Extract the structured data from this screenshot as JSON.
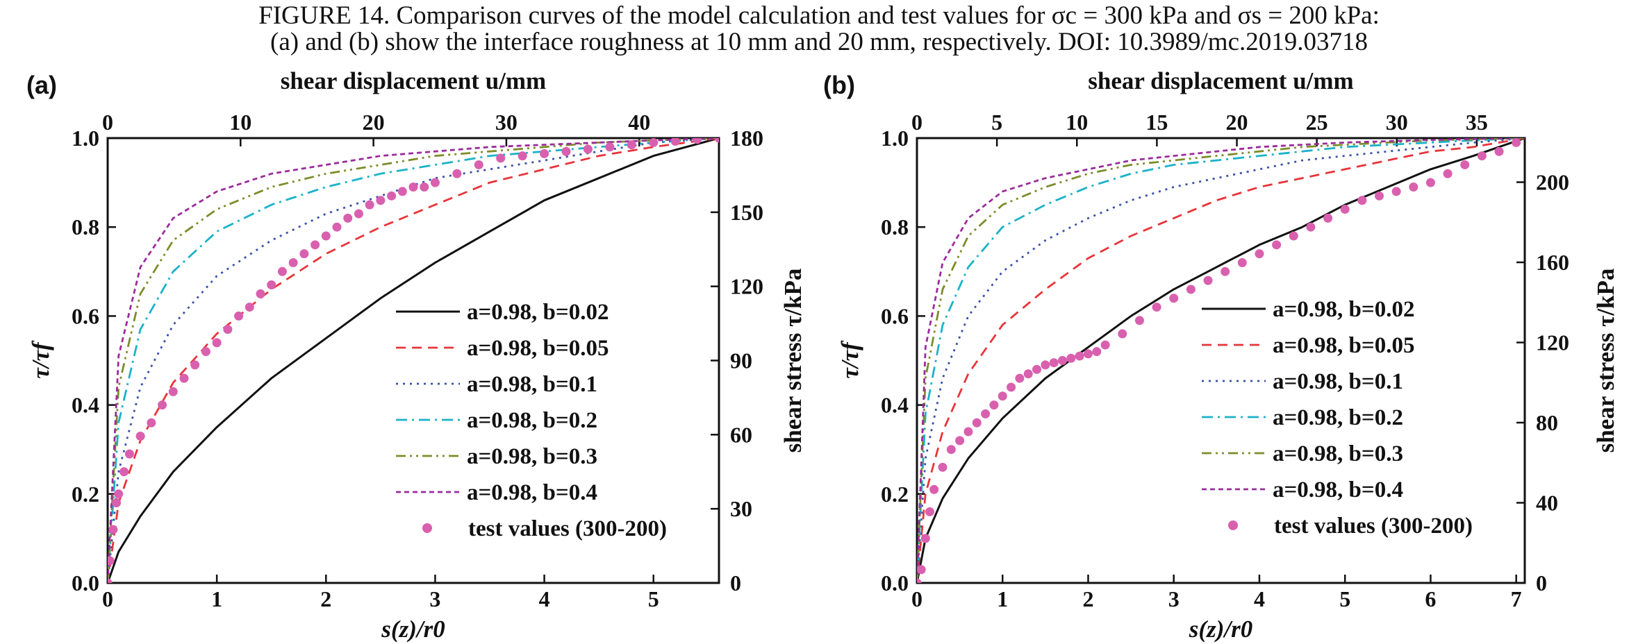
{
  "caption": {
    "line1": "FIGURE 14.    Comparison curves of the model calculation and test values for σc = 300 kPa and σs = 200 kPa:",
    "line2": "(a) and (b) show the interface roughness at 10 mm and 20 mm, respectively.  DOI: 10.3989/mc.2019.03718"
  },
  "colors": {
    "b002": "#111111",
    "b005": "#e8343a",
    "b01": "#3a4fa8",
    "b02": "#1ab2c9",
    "b03": "#7d8c2a",
    "b04": "#9b2c9b",
    "test": "#d960ae"
  },
  "chart_data": [
    {
      "type": "line",
      "label": "(a)",
      "xlabel": "s(z)/r0",
      "ylabel": "τ/τf",
      "x2label": "shear displacement u/mm",
      "y2label": "shear stress τ/kPa",
      "xlim": [
        0,
        5.6
      ],
      "ylim": [
        0,
        1.0
      ],
      "x2lim": [
        0,
        46
      ],
      "y2lim": [
        0,
        180
      ],
      "xticks": [
        0,
        1,
        2,
        3,
        4,
        5
      ],
      "yticks": [
        0.0,
        0.2,
        0.4,
        0.6,
        0.8,
        1.0
      ],
      "x2ticks": [
        0,
        10,
        20,
        30,
        40
      ],
      "y2ticks": [
        0,
        30,
        60,
        90,
        120,
        150,
        180
      ],
      "legend_position": "lower-right",
      "series": [
        {
          "name": "a=0.98, b=0.02",
          "style": "solid",
          "color_key": "b002",
          "x": [
            0,
            0.1,
            0.3,
            0.6,
            1.0,
            1.5,
            2.0,
            2.5,
            3.0,
            3.5,
            4.0,
            4.5,
            5.0,
            5.6
          ],
          "y": [
            0,
            0.07,
            0.15,
            0.25,
            0.35,
            0.46,
            0.55,
            0.64,
            0.72,
            0.79,
            0.86,
            0.91,
            0.96,
            1.0
          ]
        },
        {
          "name": "a=0.98, b=0.05",
          "style": "dash",
          "color_key": "b005",
          "x": [
            0,
            0.1,
            0.3,
            0.6,
            1.0,
            1.5,
            2.0,
            2.5,
            3.0,
            3.5,
            4.0,
            4.5,
            5.0,
            5.6
          ],
          "y": [
            0,
            0.18,
            0.32,
            0.45,
            0.56,
            0.66,
            0.74,
            0.8,
            0.85,
            0.9,
            0.93,
            0.96,
            0.98,
            1.0
          ]
        },
        {
          "name": "a=0.98, b=0.1",
          "style": "dot",
          "color_key": "b01",
          "x": [
            0,
            0.1,
            0.3,
            0.6,
            1.0,
            1.5,
            2.0,
            2.5,
            3.0,
            3.5,
            4.0,
            4.5,
            5.0,
            5.6
          ],
          "y": [
            0,
            0.25,
            0.44,
            0.58,
            0.69,
            0.77,
            0.83,
            0.87,
            0.91,
            0.93,
            0.95,
            0.97,
            0.99,
            1.0
          ]
        },
        {
          "name": "a=0.98, b=0.2",
          "style": "dashdot",
          "color_key": "b02",
          "x": [
            0,
            0.1,
            0.3,
            0.6,
            1.0,
            1.5,
            2.0,
            2.5,
            3.0,
            3.5,
            4.0,
            4.5,
            5.0,
            5.6
          ],
          "y": [
            0,
            0.36,
            0.57,
            0.7,
            0.79,
            0.85,
            0.89,
            0.92,
            0.94,
            0.96,
            0.97,
            0.98,
            0.99,
            1.0
          ]
        },
        {
          "name": "a=0.98, b=0.3",
          "style": "dashdotdot",
          "color_key": "b03",
          "x": [
            0,
            0.1,
            0.3,
            0.6,
            1.0,
            1.5,
            2.0,
            2.5,
            3.0,
            3.5,
            4.0,
            4.5,
            5.0,
            5.6
          ],
          "y": [
            0,
            0.44,
            0.65,
            0.77,
            0.84,
            0.89,
            0.92,
            0.94,
            0.96,
            0.97,
            0.98,
            0.99,
            0.995,
            1.0
          ]
        },
        {
          "name": "a=0.98, b=0.4",
          "style": "shortdash",
          "color_key": "b04",
          "x": [
            0,
            0.1,
            0.3,
            0.6,
            1.0,
            1.5,
            2.0,
            2.5,
            3.0,
            3.5,
            4.0,
            4.5,
            5.0,
            5.6
          ],
          "y": [
            0,
            0.51,
            0.71,
            0.82,
            0.88,
            0.92,
            0.94,
            0.96,
            0.97,
            0.98,
            0.985,
            0.99,
            0.995,
            1.0
          ]
        },
        {
          "name": "test values (300-200)",
          "style": "markers",
          "color_key": "test",
          "x": [
            0,
            0.02,
            0.05,
            0.08,
            0.1,
            0.15,
            0.2,
            0.3,
            0.4,
            0.5,
            0.6,
            0.7,
            0.8,
            0.9,
            1.0,
            1.1,
            1.2,
            1.3,
            1.4,
            1.5,
            1.6,
            1.7,
            1.8,
            1.9,
            2.0,
            2.1,
            2.2,
            2.3,
            2.4,
            2.5,
            2.6,
            2.7,
            2.8,
            2.9,
            3.0,
            3.2,
            3.4,
            3.6,
            3.8,
            4.0,
            4.2,
            4.4,
            4.6,
            4.8,
            5.0,
            5.2,
            5.4,
            5.6
          ],
          "y": [
            0,
            0.05,
            0.12,
            0.18,
            0.2,
            0.25,
            0.29,
            0.33,
            0.36,
            0.4,
            0.43,
            0.46,
            0.49,
            0.52,
            0.54,
            0.57,
            0.6,
            0.62,
            0.65,
            0.67,
            0.7,
            0.72,
            0.74,
            0.76,
            0.78,
            0.8,
            0.82,
            0.83,
            0.85,
            0.86,
            0.87,
            0.88,
            0.89,
            0.89,
            0.9,
            0.92,
            0.94,
            0.955,
            0.96,
            0.965,
            0.97,
            0.975,
            0.98,
            0.985,
            0.99,
            0.993,
            0.997,
            1.0
          ]
        }
      ]
    },
    {
      "type": "line",
      "label": "(b)",
      "xlabel": "s(z)/r0",
      "ylabel": "τ/τf",
      "x2label": "shear displacement u/mm",
      "y2label": "shear stress τ/kPa",
      "xlim": [
        0,
        7.1
      ],
      "ylim": [
        0,
        1.0
      ],
      "x2lim": [
        0,
        38
      ],
      "y2lim": [
        0,
        222
      ],
      "xticks": [
        0,
        1,
        2,
        3,
        4,
        5,
        6,
        7
      ],
      "yticks": [
        0.0,
        0.2,
        0.4,
        0.6,
        0.8,
        1.0
      ],
      "x2ticks": [
        0,
        5,
        10,
        15,
        20,
        25,
        30,
        35
      ],
      "y2ticks": [
        0,
        40,
        80,
        120,
        160,
        200
      ],
      "legend_position": "lower-right",
      "series": [
        {
          "name": "a=0.98, b=0.02",
          "style": "solid",
          "color_key": "b002",
          "x": [
            0,
            0.1,
            0.3,
            0.6,
            1.0,
            1.5,
            2.0,
            2.5,
            3.0,
            3.5,
            4.0,
            4.5,
            5.0,
            5.5,
            6.0,
            6.5,
            7.1
          ],
          "y": [
            0,
            0.1,
            0.19,
            0.28,
            0.37,
            0.46,
            0.53,
            0.6,
            0.66,
            0.71,
            0.76,
            0.8,
            0.85,
            0.89,
            0.93,
            0.96,
            1.0
          ]
        },
        {
          "name": "a=0.98, b=0.05",
          "style": "dash",
          "color_key": "b005",
          "x": [
            0,
            0.1,
            0.3,
            0.6,
            1.0,
            1.5,
            2.0,
            2.5,
            3.0,
            3.5,
            4.0,
            4.5,
            5.0,
            5.5,
            6.0,
            6.5,
            7.1
          ],
          "y": [
            0,
            0.2,
            0.34,
            0.47,
            0.58,
            0.66,
            0.73,
            0.78,
            0.82,
            0.86,
            0.89,
            0.91,
            0.93,
            0.95,
            0.97,
            0.98,
            1.0
          ]
        },
        {
          "name": "a=0.98, b=0.1",
          "style": "dot",
          "color_key": "b01",
          "x": [
            0,
            0.1,
            0.3,
            0.6,
            1.0,
            1.5,
            2.0,
            2.5,
            3.0,
            3.5,
            4.0,
            4.5,
            5.0,
            5.5,
            6.0,
            6.5,
            7.1
          ],
          "y": [
            0,
            0.28,
            0.46,
            0.6,
            0.7,
            0.77,
            0.82,
            0.86,
            0.89,
            0.91,
            0.93,
            0.95,
            0.96,
            0.97,
            0.98,
            0.99,
            1.0
          ]
        },
        {
          "name": "a=0.98, b=0.2",
          "style": "dashdot",
          "color_key": "b02",
          "x": [
            0,
            0.1,
            0.3,
            0.6,
            1.0,
            1.5,
            2.0,
            2.5,
            3.0,
            3.5,
            4.0,
            4.5,
            5.0,
            5.5,
            6.0,
            6.5,
            7.1
          ],
          "y": [
            0,
            0.38,
            0.58,
            0.71,
            0.8,
            0.85,
            0.89,
            0.92,
            0.94,
            0.95,
            0.96,
            0.97,
            0.98,
            0.985,
            0.99,
            0.995,
            1.0
          ]
        },
        {
          "name": "a=0.98, b=0.3",
          "style": "dashdotdot",
          "color_key": "b03",
          "x": [
            0,
            0.1,
            0.3,
            0.6,
            1.0,
            1.5,
            2.0,
            2.5,
            3.0,
            3.5,
            4.0,
            4.5,
            5.0,
            5.5,
            6.0,
            6.5,
            7.1
          ],
          "y": [
            0,
            0.46,
            0.66,
            0.78,
            0.85,
            0.89,
            0.92,
            0.94,
            0.95,
            0.96,
            0.97,
            0.98,
            0.985,
            0.99,
            0.995,
            0.997,
            1.0
          ]
        },
        {
          "name": "a=0.98, b=0.4",
          "style": "shortdash",
          "color_key": "b04",
          "x": [
            0,
            0.1,
            0.3,
            0.6,
            1.0,
            1.5,
            2.0,
            2.5,
            3.0,
            3.5,
            4.0,
            4.5,
            5.0,
            5.5,
            6.0,
            6.5,
            7.1
          ],
          "y": [
            0,
            0.53,
            0.72,
            0.82,
            0.88,
            0.91,
            0.93,
            0.95,
            0.96,
            0.97,
            0.98,
            0.985,
            0.99,
            0.993,
            0.996,
            0.998,
            1.0
          ]
        },
        {
          "name": "test values (300-200)",
          "style": "markers",
          "color_key": "test",
          "x": [
            0,
            0.05,
            0.1,
            0.15,
            0.2,
            0.3,
            0.4,
            0.5,
            0.6,
            0.7,
            0.8,
            0.9,
            1.0,
            1.1,
            1.2,
            1.3,
            1.4,
            1.5,
            1.6,
            1.7,
            1.8,
            1.9,
            2.0,
            2.1,
            2.2,
            2.4,
            2.6,
            2.8,
            3.0,
            3.2,
            3.4,
            3.6,
            3.8,
            4.0,
            4.2,
            4.4,
            4.6,
            4.8,
            5.0,
            5.2,
            5.4,
            5.6,
            5.8,
            6.0,
            6.2,
            6.4,
            6.6,
            6.8,
            7.0
          ],
          "y": [
            0,
            0.03,
            0.1,
            0.16,
            0.21,
            0.26,
            0.3,
            0.32,
            0.34,
            0.36,
            0.38,
            0.4,
            0.42,
            0.44,
            0.46,
            0.47,
            0.48,
            0.49,
            0.495,
            0.5,
            0.505,
            0.51,
            0.515,
            0.52,
            0.535,
            0.56,
            0.59,
            0.62,
            0.64,
            0.66,
            0.68,
            0.7,
            0.72,
            0.74,
            0.76,
            0.78,
            0.8,
            0.82,
            0.84,
            0.86,
            0.87,
            0.88,
            0.89,
            0.9,
            0.92,
            0.94,
            0.96,
            0.97,
            0.99
          ]
        }
      ]
    }
  ]
}
